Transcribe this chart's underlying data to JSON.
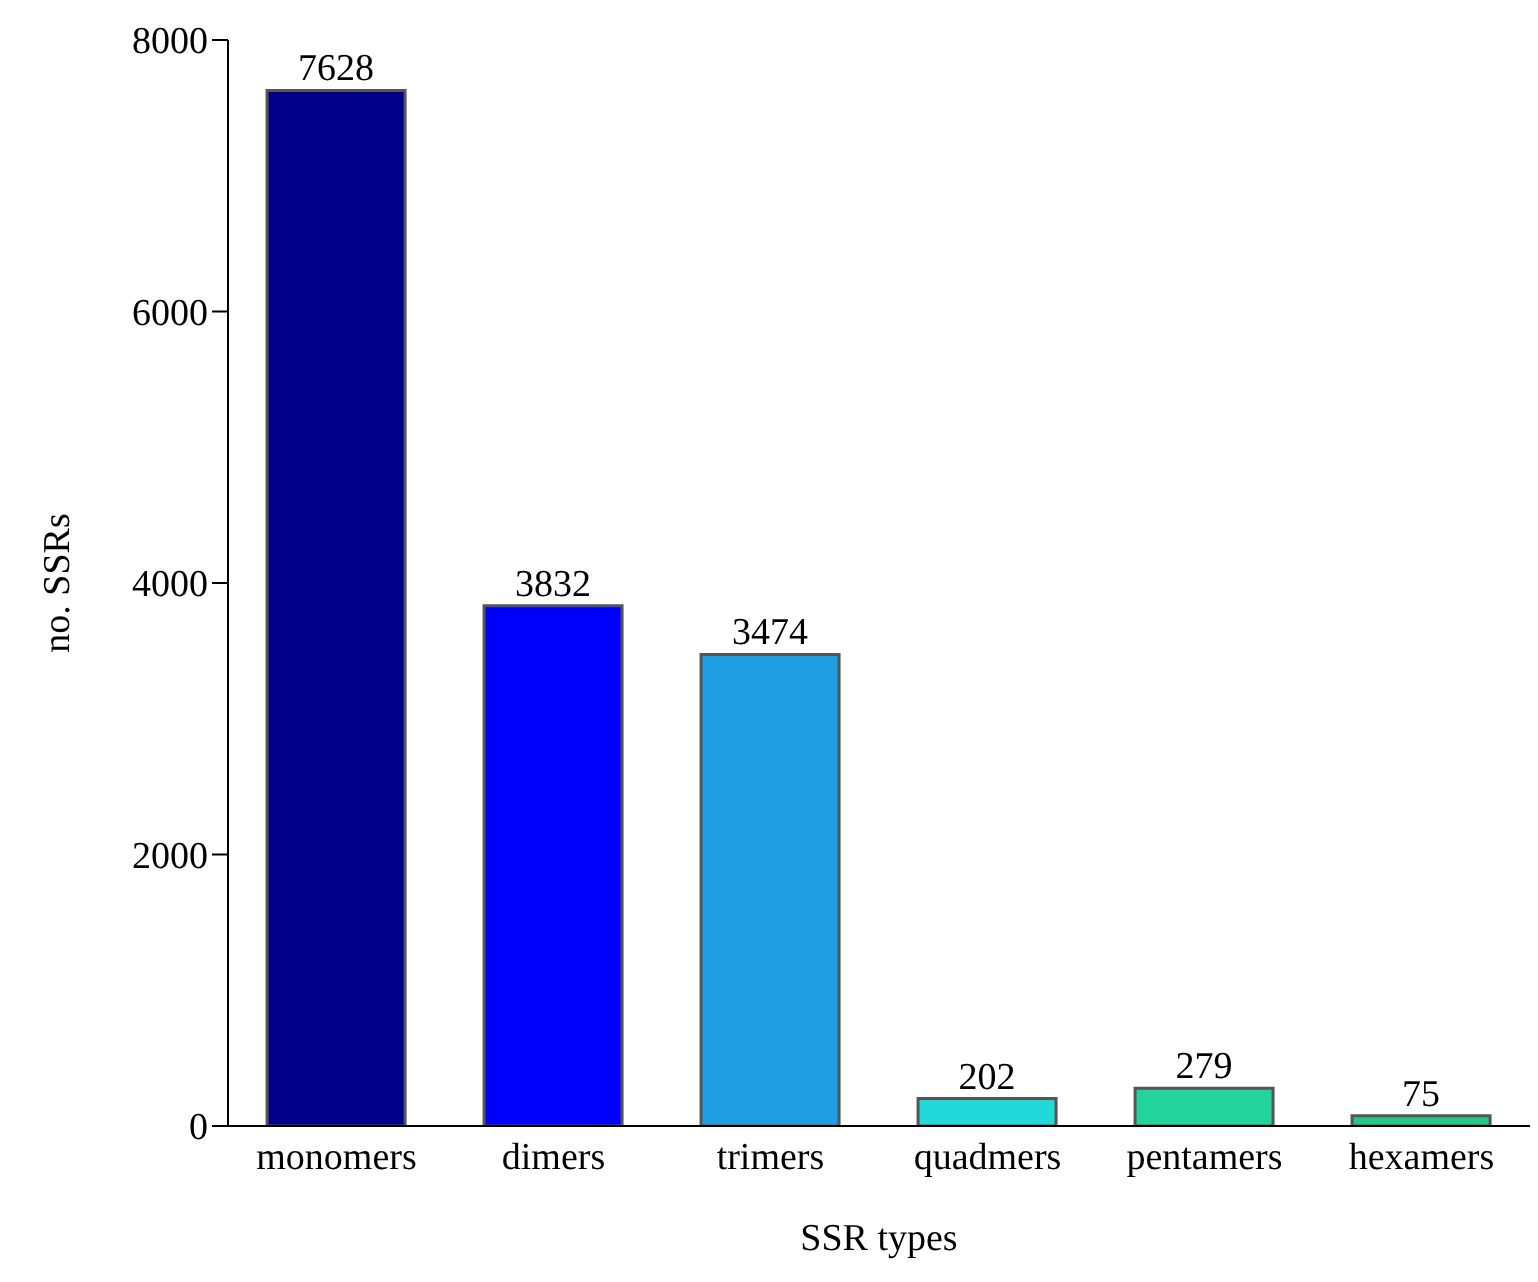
{
  "chart_data": {
    "type": "bar",
    "xlabel": "SSR types",
    "ylabel": "no. SSRs",
    "categories": [
      "monomers",
      "dimers",
      "trimers",
      "quadmers",
      "pentamers",
      "hexamers"
    ],
    "values": [
      7628,
      3832,
      3474,
      202,
      279,
      75
    ],
    "colors": [
      "#00008b",
      "#0000ff",
      "#1e9fe3",
      "#22d9d9",
      "#22d49c",
      "#20c98a"
    ],
    "ylim": [
      0,
      8000
    ],
    "yticks": [
      0,
      2000,
      4000,
      6000,
      8000
    ],
    "grid": false,
    "data_labels": true
  }
}
